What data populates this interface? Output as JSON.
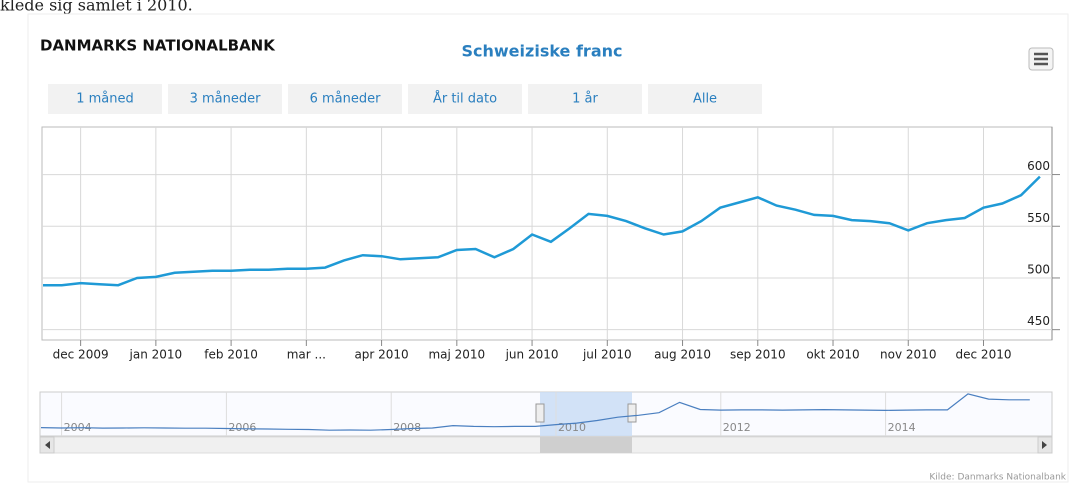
{
  "page_text": "klede sig samlet i 2010.",
  "chart_data": {
    "type": "line",
    "brand": "DANMARKS NATIONALBANK",
    "title": "Schweiziske franc",
    "credits": "Kilde: Danmarks Nationalbank",
    "range_buttons": [
      "1 måned",
      "3 måneder",
      "6 måneder",
      "År til dato",
      "1 år",
      "Alle"
    ],
    "categories": [
      null,
      null,
      "dec 2009",
      null,
      null,
      null,
      "jan 2010",
      null,
      null,
      null,
      "feb 2010",
      null,
      null,
      null,
      "mar ...",
      null,
      null,
      null,
      "apr 2010",
      null,
      null,
      null,
      "maj 2010",
      null,
      null,
      null,
      "jun 2010",
      null,
      null,
      null,
      "jul 2010",
      null,
      null,
      null,
      "aug 2010",
      null,
      null,
      null,
      "sep 2010",
      null,
      null,
      null,
      "okt 2010",
      null,
      null,
      null,
      "nov 2010",
      null,
      null,
      null,
      "dec 2010",
      null,
      null,
      null
    ],
    "series": [
      {
        "name": "Schweiziske franc",
        "color": "#1f9ad6",
        "values": [
          493,
          493,
          495,
          494,
          493,
          500,
          501,
          505,
          506,
          507,
          507,
          508,
          508,
          509,
          509,
          510,
          517,
          522,
          521,
          518,
          519,
          520,
          527,
          528,
          520,
          528,
          542,
          535,
          548,
          562,
          560,
          555,
          548,
          542,
          545,
          555,
          568,
          573,
          578,
          570,
          566,
          561,
          560,
          556,
          555,
          553,
          546,
          553,
          556,
          558,
          568,
          572,
          580,
          598
        ]
      }
    ],
    "ylim": [
      440,
      646
    ],
    "yticks": [
      450,
      500,
      550,
      600
    ],
    "grid": true,
    "navigator": {
      "categories": [
        null,
        "2004",
        null,
        null,
        null,
        null,
        null,
        null,
        null,
        "2006",
        null,
        null,
        null,
        null,
        null,
        null,
        null,
        "2008",
        null,
        null,
        null,
        null,
        null,
        null,
        null,
        "2010",
        null,
        null,
        null,
        null,
        null,
        null,
        null,
        "2012",
        null,
        null,
        null,
        null,
        null,
        null,
        null,
        "2014",
        null,
        null,
        null,
        null,
        null,
        null,
        null
      ],
      "color": "#4a7fc0",
      "values": [
        485,
        482,
        484,
        481,
        482,
        483,
        482,
        480,
        480,
        478,
        476,
        474,
        472,
        470,
        465,
        466,
        465,
        470,
        478,
        482,
        500,
        494,
        492,
        494,
        494,
        508,
        520,
        540,
        565,
        580,
        600,
        680,
        625,
        620,
        622,
        622,
        620,
        622,
        624,
        622,
        620,
        618,
        620,
        622,
        622,
        745,
        705,
        700,
        700
      ],
      "ylim": [
        420,
        760
      ]
    }
  }
}
